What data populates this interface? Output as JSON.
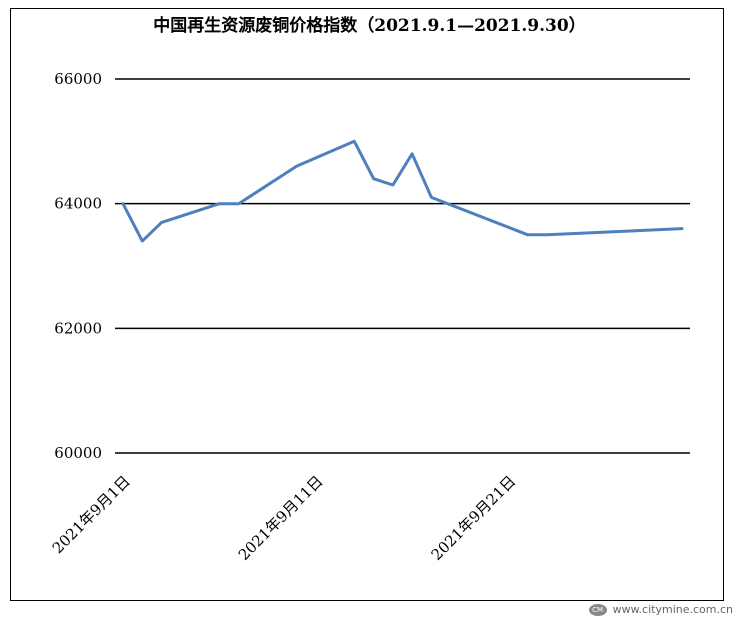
{
  "chart_data": {
    "type": "line",
    "title": "中国再生资源废铜价格指数（2021.9.1—2021.9.30）",
    "xlabel": "",
    "ylabel": "",
    "ylim": [
      60000,
      66000
    ],
    "yticks": [
      60000,
      62000,
      64000,
      66000
    ],
    "ytick_labels": [
      "60000",
      "62000",
      "64000",
      "66000"
    ],
    "x": [
      "2021年9月1日",
      "2021年9月2日",
      "2021年9月3日",
      "2021年9月6日",
      "2021年9月7日",
      "2021年9月10日",
      "2021年9月13日",
      "2021年9月14日",
      "2021年9月15日",
      "2021年9月16日",
      "2021年9月17日",
      "2021年9月22日",
      "2021年9月23日",
      "2021年9月30日"
    ],
    "xtick_labels": [
      "2021年9月1日",
      "2021年9月11日",
      "2021年9月21日"
    ],
    "series": [
      {
        "values": [
          64000,
          63400,
          63700,
          64000,
          64000,
          64600,
          65000,
          64400,
          64300,
          64800,
          64100,
          63500,
          63500,
          63600
        ],
        "color": "#4f7fbd"
      }
    ],
    "grid": true,
    "legend": "none"
  },
  "watermark": {
    "logo": "CM",
    "text": "www.citymine.com.cn"
  }
}
